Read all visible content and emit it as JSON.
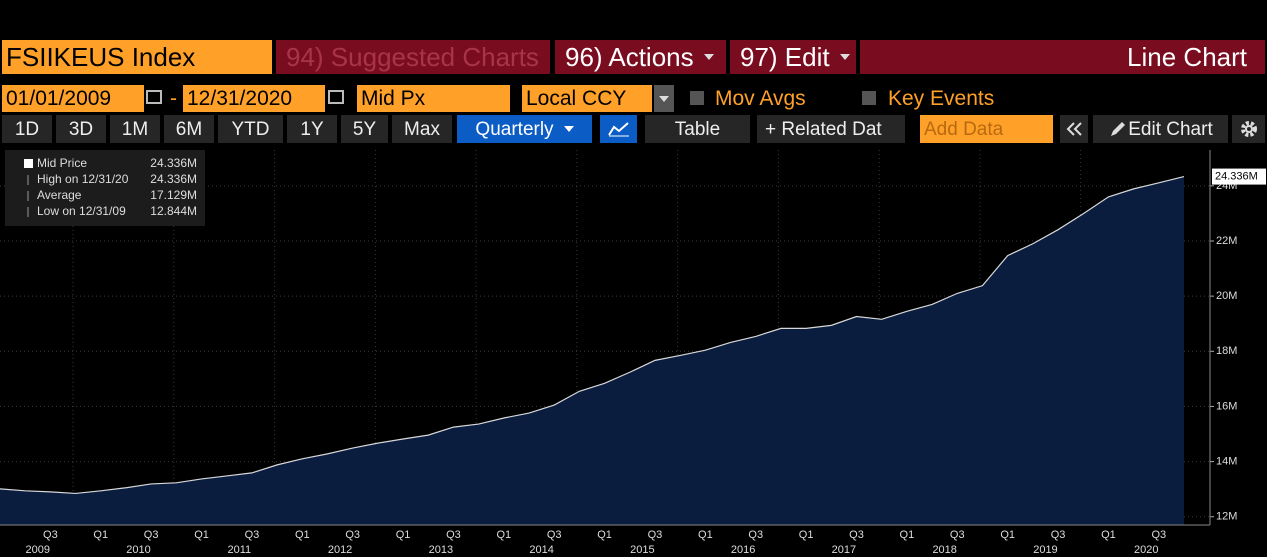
{
  "ui": {
    "ticker": "FSIIKEUS Index",
    "suggested": "94) Suggested Charts",
    "actions": "96) Actions",
    "edit": "97) Edit",
    "mode": "Line Chart",
    "start_date": "01/01/2009",
    "dash": "-",
    "end_date": "12/31/2020",
    "field": "Mid Px",
    "currency": "Local CCY",
    "mov_avgs": "Mov Avgs",
    "key_events": "Key Events",
    "periods": [
      "1D",
      "3D",
      "1M",
      "6M",
      "YTD",
      "1Y",
      "5Y",
      "Max"
    ],
    "frequency": "Quarterly",
    "table": "Table",
    "related": "+ Related Dat",
    "add_data": "Add Data",
    "edit_chart": "Edit Chart"
  },
  "chart_data": {
    "type": "area",
    "color": "#0b1d3f",
    "line_color": "#d8d8d8",
    "categories": [
      null,
      null,
      "Q3",
      null,
      "Q1",
      null,
      "Q3",
      null,
      "Q1",
      null,
      "Q3",
      null,
      "Q1",
      null,
      "Q3",
      null,
      "Q1",
      null,
      "Q3",
      null,
      "Q1",
      null,
      "Q3",
      null,
      "Q1",
      null,
      "Q3",
      null,
      "Q1",
      null,
      "Q3",
      null,
      "Q1",
      null,
      "Q3",
      null,
      "Q1",
      null,
      "Q3",
      null,
      "Q1",
      null,
      "Q3",
      null,
      "Q1",
      null,
      "Q3",
      null
    ],
    "years": [
      "2009",
      "2010",
      "2011",
      "2012",
      "2013",
      "2014",
      "2015",
      "2016",
      "2017",
      "2018",
      "2019",
      "2020"
    ],
    "values": [
      13.01,
      12.94,
      12.9,
      12.844,
      12.94,
      13.05,
      13.19,
      13.23,
      13.37,
      13.48,
      13.59,
      13.88,
      14.1,
      14.28,
      14.49,
      14.67,
      14.82,
      14.96,
      15.25,
      15.36,
      15.58,
      15.76,
      16.05,
      16.55,
      16.84,
      17.24,
      17.67,
      17.85,
      18.04,
      18.32,
      18.54,
      18.83,
      18.83,
      18.94,
      19.26,
      19.16,
      19.45,
      19.7,
      20.1,
      20.38,
      21.47,
      21.9,
      22.41,
      22.99,
      23.6,
      23.89,
      24.11,
      24.336
    ],
    "ylim": [
      11.7,
      25.3
    ],
    "yticks": [
      {
        "value": 12,
        "label": "12M"
      },
      {
        "value": 14,
        "label": "14M"
      },
      {
        "value": 16,
        "label": "16M"
      },
      {
        "value": 18,
        "label": "18M"
      },
      {
        "value": 20,
        "label": "20M"
      },
      {
        "value": 22,
        "label": "22M"
      },
      {
        "value": 24,
        "label": "24M"
      }
    ],
    "grid": true,
    "legend": [
      {
        "label": "Mid Price",
        "value": "24.336M"
      },
      {
        "label": "High on 12/31/20",
        "value": "24.336M"
      },
      {
        "label": "Average",
        "value": "17.129M"
      },
      {
        "label": "Low on 12/31/09",
        "value": "12.844M"
      }
    ]
  }
}
